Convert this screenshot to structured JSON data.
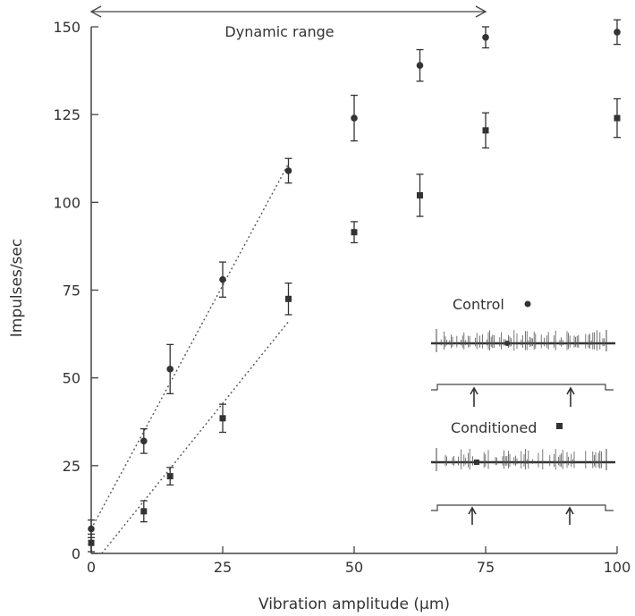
{
  "chart_data": {
    "type": "scatter",
    "xlabel": "Vibration amplitude (μm)",
    "ylabel": "Impulses/sec",
    "xlim": [
      0,
      100
    ],
    "ylim": [
      0,
      150
    ],
    "xticks": [
      0,
      25,
      50,
      75,
      100
    ],
    "yticks": [
      0,
      25,
      50,
      75,
      100,
      125,
      150
    ],
    "grid": false,
    "annotation": {
      "text": "Dynamic range",
      "x_start": 0,
      "x_end": 75
    },
    "series": [
      {
        "name": "Control",
        "marker": "circle",
        "points": [
          {
            "x": 0,
            "y": 7,
            "err": 2.5
          },
          {
            "x": 10,
            "y": 32,
            "err": 3.5
          },
          {
            "x": 15,
            "y": 52.5,
            "err": 7
          },
          {
            "x": 25,
            "y": 78,
            "err": 5
          },
          {
            "x": 37.5,
            "y": 109,
            "err": 3.5
          },
          {
            "x": 50,
            "y": 124,
            "err": 6.5
          },
          {
            "x": 62.5,
            "y": 139,
            "err": 4.5
          },
          {
            "x": 75,
            "y": 147,
            "err": 3
          },
          {
            "x": 100,
            "y": 148.5,
            "err": 3.5
          }
        ],
        "fit": {
          "x0": 0,
          "y0": 7,
          "x1": 37.5,
          "y1": 111
        }
      },
      {
        "name": "Conditioned",
        "marker": "square",
        "points": [
          {
            "x": 0,
            "y": 3,
            "err": 2.5
          },
          {
            "x": 10,
            "y": 12,
            "err": 3
          },
          {
            "x": 15,
            "y": 22,
            "err": 2.5
          },
          {
            "x": 25,
            "y": 38.5,
            "err": 4
          },
          {
            "x": 37.5,
            "y": 72.5,
            "err": 4.5
          },
          {
            "x": 50,
            "y": 91.5,
            "err": 3
          },
          {
            "x": 62.5,
            "y": 102,
            "err": 6
          },
          {
            "x": 75,
            "y": 120.5,
            "err": 5
          },
          {
            "x": 100,
            "y": 124,
            "err": 5.5
          }
        ],
        "fit": {
          "x0": 2,
          "y0": 0,
          "x1": 37.5,
          "y1": 66
        }
      }
    ],
    "inset": {
      "traces": [
        {
          "label": "Control",
          "marker": "circle"
        },
        {
          "label": "Conditioned",
          "marker": "square"
        }
      ]
    }
  }
}
